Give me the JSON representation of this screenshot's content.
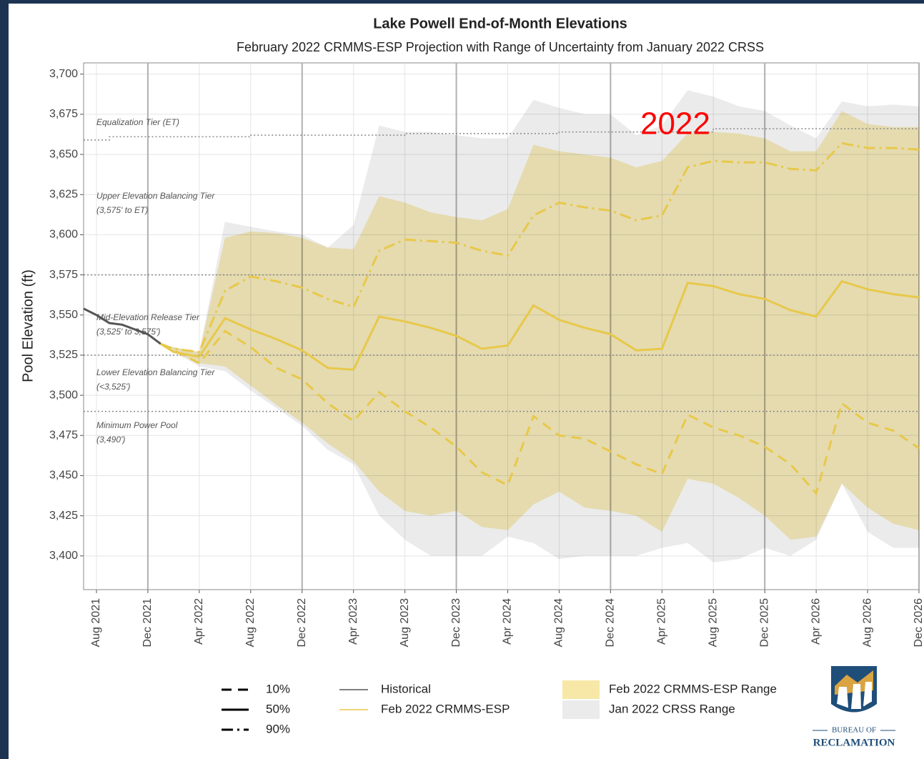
{
  "chart_data": {
    "type": "line",
    "title": "Lake Powell End-of-Month Elevations",
    "subtitle": "February 2022 CRMMS-ESP Projection with Range of Uncertainty from January 2022 CRSS",
    "y_label": "Pool Elevation (ft)",
    "xlim": [
      "2021-07",
      "2026-12"
    ],
    "xticks": [
      {
        "value": "2021-08",
        "label": "Aug 2021"
      },
      {
        "value": "2021-12",
        "label": "Dec 2021"
      },
      {
        "value": "2022-04",
        "label": "Apr 2022"
      },
      {
        "value": "2022-08",
        "label": "Aug 2022"
      },
      {
        "value": "2022-12",
        "label": "Dec 2022"
      },
      {
        "value": "2023-04",
        "label": "Apr 2023"
      },
      {
        "value": "2023-08",
        "label": "Aug 2023"
      },
      {
        "value": "2023-12",
        "label": "Dec 2023"
      },
      {
        "value": "2024-04",
        "label": "Apr 2024"
      },
      {
        "value": "2024-08",
        "label": "Aug 2024"
      },
      {
        "value": "2024-12",
        "label": "Dec 2024"
      },
      {
        "value": "2025-04",
        "label": "Apr 2025"
      },
      {
        "value": "2025-08",
        "label": "Aug 2025"
      },
      {
        "value": "2025-12",
        "label": "Dec 2025"
      },
      {
        "value": "2026-04",
        "label": "Apr 2026"
      },
      {
        "value": "2026-08",
        "label": "Aug 2026"
      },
      {
        "value": "2026-12",
        "label": "Dec 2026"
      }
    ],
    "ylim": [
      3379,
      3707
    ],
    "yticks": [
      {
        "value": 3400,
        "label": "3,400"
      },
      {
        "value": 3425,
        "label": "3,425"
      },
      {
        "value": 3450,
        "label": "3,450"
      },
      {
        "value": 3475,
        "label": "3,475"
      },
      {
        "value": 3500,
        "label": "3,500"
      },
      {
        "value": 3525,
        "label": "3,525"
      },
      {
        "value": 3550,
        "label": "3,550"
      },
      {
        "value": 3575,
        "label": "3,575"
      },
      {
        "value": 3600,
        "label": "3,600"
      },
      {
        "value": 3625,
        "label": "3,625"
      },
      {
        "value": 3650,
        "label": "3,650"
      },
      {
        "value": 3675,
        "label": "3,675"
      },
      {
        "value": 3700,
        "label": "3,700"
      }
    ],
    "grid": true,
    "x": [
      "2022-01",
      "2022-02",
      "2022-04",
      "2022-06",
      "2022-08",
      "2022-10",
      "2022-12",
      "2023-02",
      "2023-04",
      "2023-06",
      "2023-08",
      "2023-10",
      "2023-12",
      "2024-02",
      "2024-04",
      "2024-06",
      "2024-08",
      "2024-10",
      "2024-12",
      "2025-02",
      "2025-04",
      "2025-06",
      "2025-08",
      "2025-10",
      "2025-12",
      "2026-02",
      "2026-04",
      "2026-06",
      "2026-08",
      "2026-10",
      "2026-12"
    ],
    "bands": [
      {
        "name": "Jan 2022 CRSS Range",
        "color": "#ebebeb",
        "high": [
          3532,
          3530,
          3527,
          3608,
          3605,
          3602,
          3600,
          3592,
          3606,
          3668,
          3664,
          3664,
          3662,
          3660,
          3660,
          3684,
          3679,
          3675,
          3675,
          3662,
          3668,
          3690,
          3686,
          3680,
          3677,
          3668,
          3660,
          3683,
          3680,
          3681,
          3680
        ],
        "low": [
          3532,
          3527,
          3518,
          3515,
          3503,
          3492,
          3481,
          3466,
          3457,
          3425,
          3410,
          3400,
          3400,
          3400,
          3412,
          3408,
          3398,
          3400,
          3400,
          3400,
          3405,
          3408,
          3396,
          3398,
          3405,
          3400,
          3410,
          3445,
          3415,
          3405,
          3405
        ]
      },
      {
        "name": "Feb 2022 CRMMS-ESP Range",
        "color": "#f7e8a8",
        "high": [
          3532,
          3530,
          3527,
          3598,
          3602,
          3601,
          3598,
          3592,
          3591,
          3624,
          3620,
          3614,
          3611,
          3609,
          3616,
          3656,
          3652,
          3650,
          3648,
          3642,
          3646,
          3663,
          3664,
          3663,
          3660,
          3652,
          3652,
          3677,
          3669,
          3667,
          3667
        ],
        "low": [
          3532,
          3527,
          3520,
          3518,
          3506,
          3494,
          3483,
          3470,
          3459,
          3440,
          3428,
          3425,
          3428,
          3418,
          3416,
          3432,
          3440,
          3430,
          3428,
          3425,
          3415,
          3448,
          3445,
          3436,
          3425,
          3410,
          3412,
          3445,
          3430,
          3420,
          3416
        ]
      }
    ],
    "historical": {
      "name": "Historical",
      "color": "#555555",
      "x": [
        "2021-07",
        "2021-08",
        "2021-09",
        "2021-10",
        "2021-11",
        "2021-12",
        "2022-01"
      ],
      "values": [
        3554,
        3550,
        3545,
        3544,
        3541,
        3538,
        3532
      ]
    },
    "projection": {
      "name": "Feb 2022 CRMMS-ESP",
      "color": "#e8c84a",
      "percentiles": [
        {
          "label": "10%",
          "style": "dashed",
          "values": [
            3532,
            3528,
            3520,
            3540,
            3530,
            3517,
            3510,
            3495,
            3484,
            3502,
            3490,
            3480,
            3468,
            3452,
            3444,
            3487,
            3475,
            3473,
            3465,
            3457,
            3451,
            3488,
            3480,
            3475,
            3468,
            3457,
            3439,
            3495,
            3483,
            3478,
            3467
          ]
        },
        {
          "label": "50%",
          "style": "solid",
          "values": [
            3532,
            3527,
            3524,
            3548,
            3541,
            3535,
            3528,
            3517,
            3516,
            3549,
            3546,
            3542,
            3537,
            3529,
            3531,
            3556,
            3547,
            3542,
            3538,
            3528,
            3529,
            3570,
            3568,
            3563,
            3560,
            3553,
            3549,
            3571,
            3566,
            3563,
            3561
          ]
        },
        {
          "label": "90%",
          "style": "dashdot",
          "values": [
            3532,
            3529,
            3527,
            3565,
            3574,
            3571,
            3567,
            3560,
            3555,
            3590,
            3597,
            3596,
            3595,
            3590,
            3587,
            3612,
            3620,
            3617,
            3615,
            3609,
            3612,
            3642,
            3646,
            3645,
            3645,
            3641,
            3640,
            3657,
            3654,
            3654,
            3653
          ]
        }
      ]
    },
    "ref_lines": [
      3575,
      3525,
      3490
    ],
    "et_line": {
      "x": [
        "2021-07",
        "2021-09",
        "2021-09",
        "2022-08",
        "2022-08",
        "2023-08",
        "2023-08",
        "2024-08",
        "2024-08",
        "2025-08",
        "2025-08",
        "2026-12"
      ],
      "values": [
        3659,
        3659,
        3661,
        3661,
        3662,
        3662,
        3663,
        3663,
        3664,
        3664,
        3666,
        3666
      ]
    },
    "annotations": [
      "Equalization Tier (ET)",
      "Upper Elevation Balancing Tier",
      "(3,575' to ET)",
      "Mid-Elevation Release Tier",
      "(3,525' to 3,575')",
      "Lower Elevation Balancing Tier",
      "(<3,525')",
      "Minimum Power Pool",
      "(3,490')"
    ],
    "highlight": "2022",
    "logo": {
      "top": "BUREAU OF",
      "bottom": "RECLAMATION"
    }
  }
}
